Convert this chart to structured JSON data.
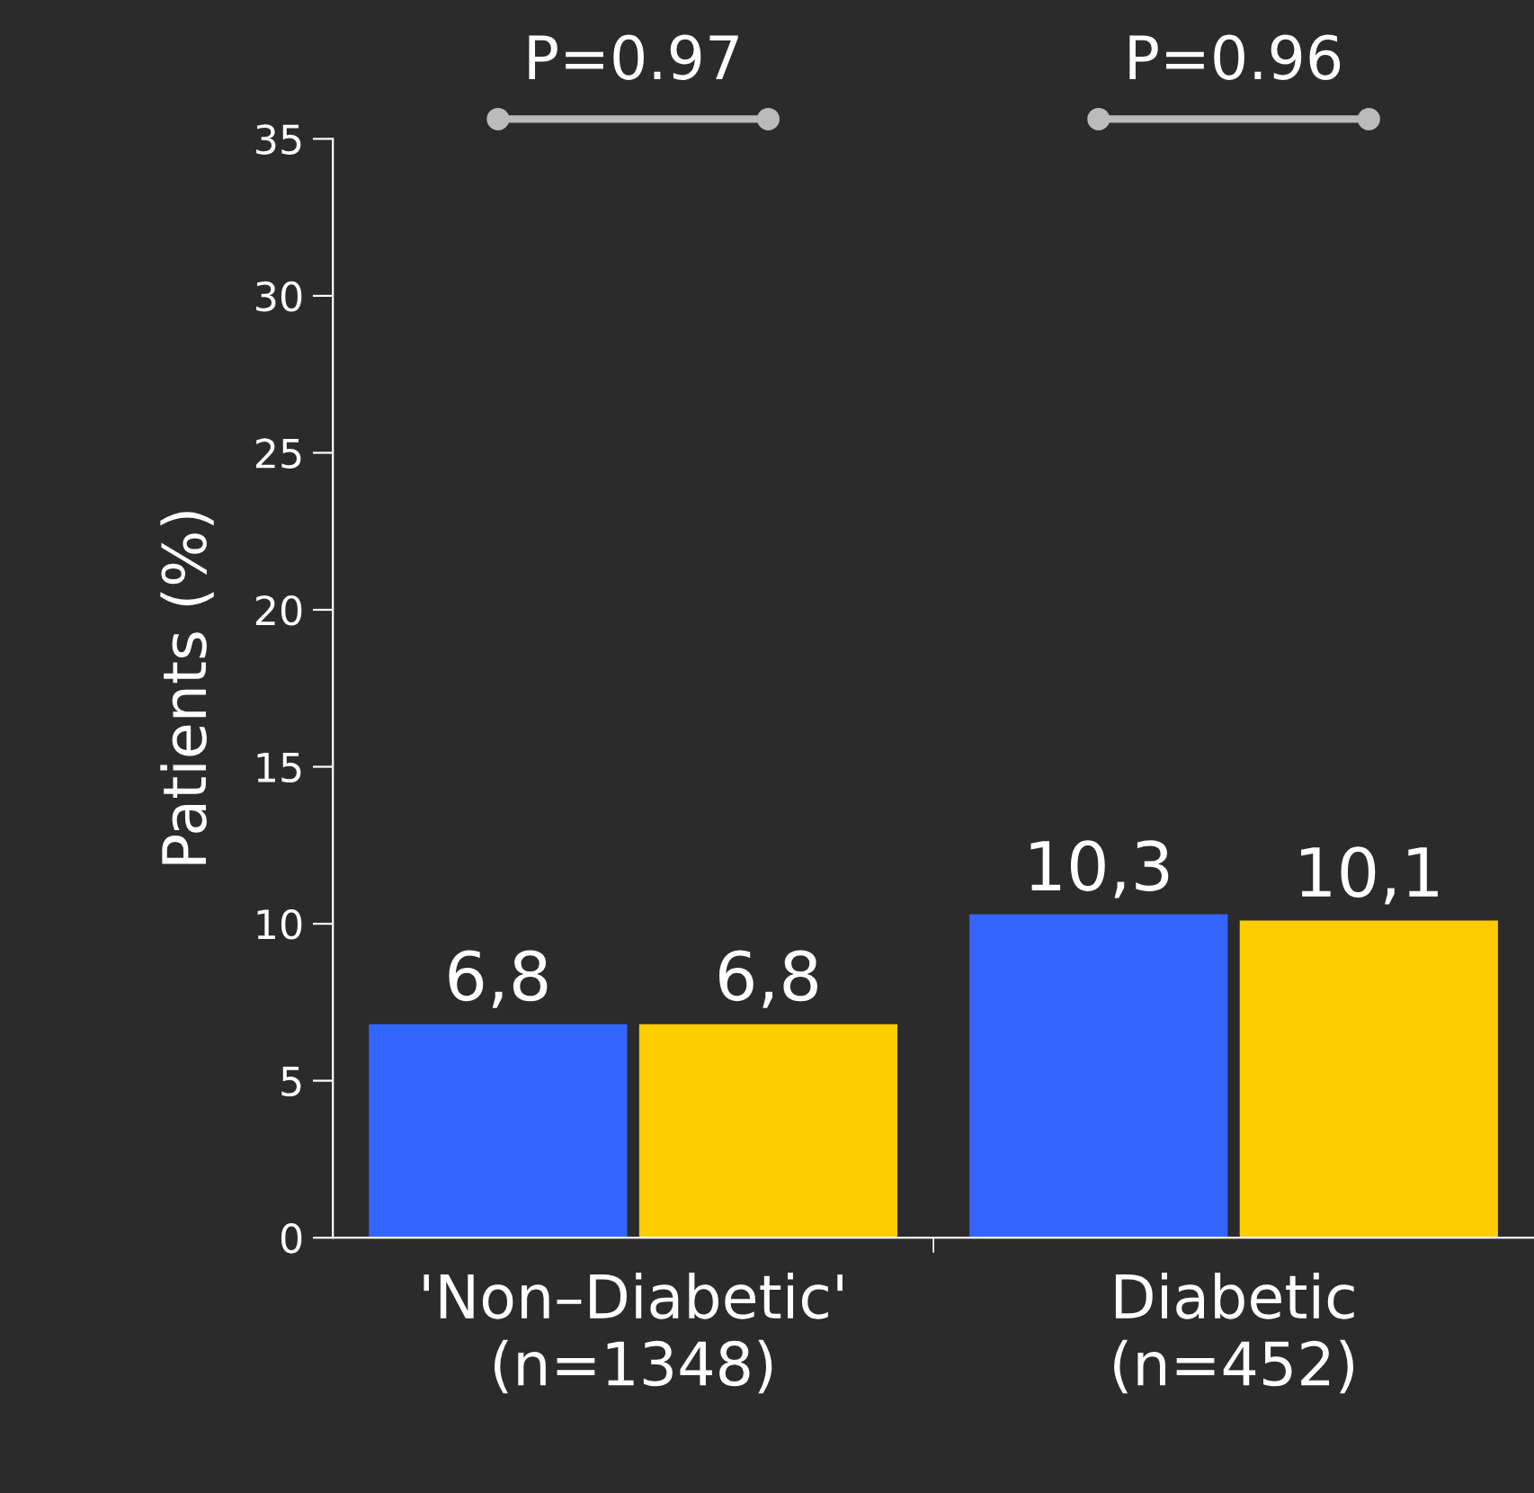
{
  "chart_data": {
    "type": "bar",
    "ylabel": "Patients (%)",
    "categories": [
      "'Non–Diabetic'\n(n=1348)",
      "Diabetic\n(n=452)"
    ],
    "series": [
      {
        "color": "#3366ff",
        "values": [
          6.8,
          10.3
        ],
        "value_labels": [
          "6,8",
          "10,3"
        ]
      },
      {
        "color": "#ffcc00",
        "values": [
          6.8,
          10.1
        ],
        "value_labels": [
          "6,8",
          "10,1"
        ]
      }
    ],
    "ylim": [
      0,
      35
    ],
    "yticks": [
      0,
      5,
      10,
      15,
      20,
      25,
      30,
      35
    ],
    "annotations": [
      "P=0.97",
      "P=0.96"
    ],
    "grid": false,
    "legend": false
  }
}
